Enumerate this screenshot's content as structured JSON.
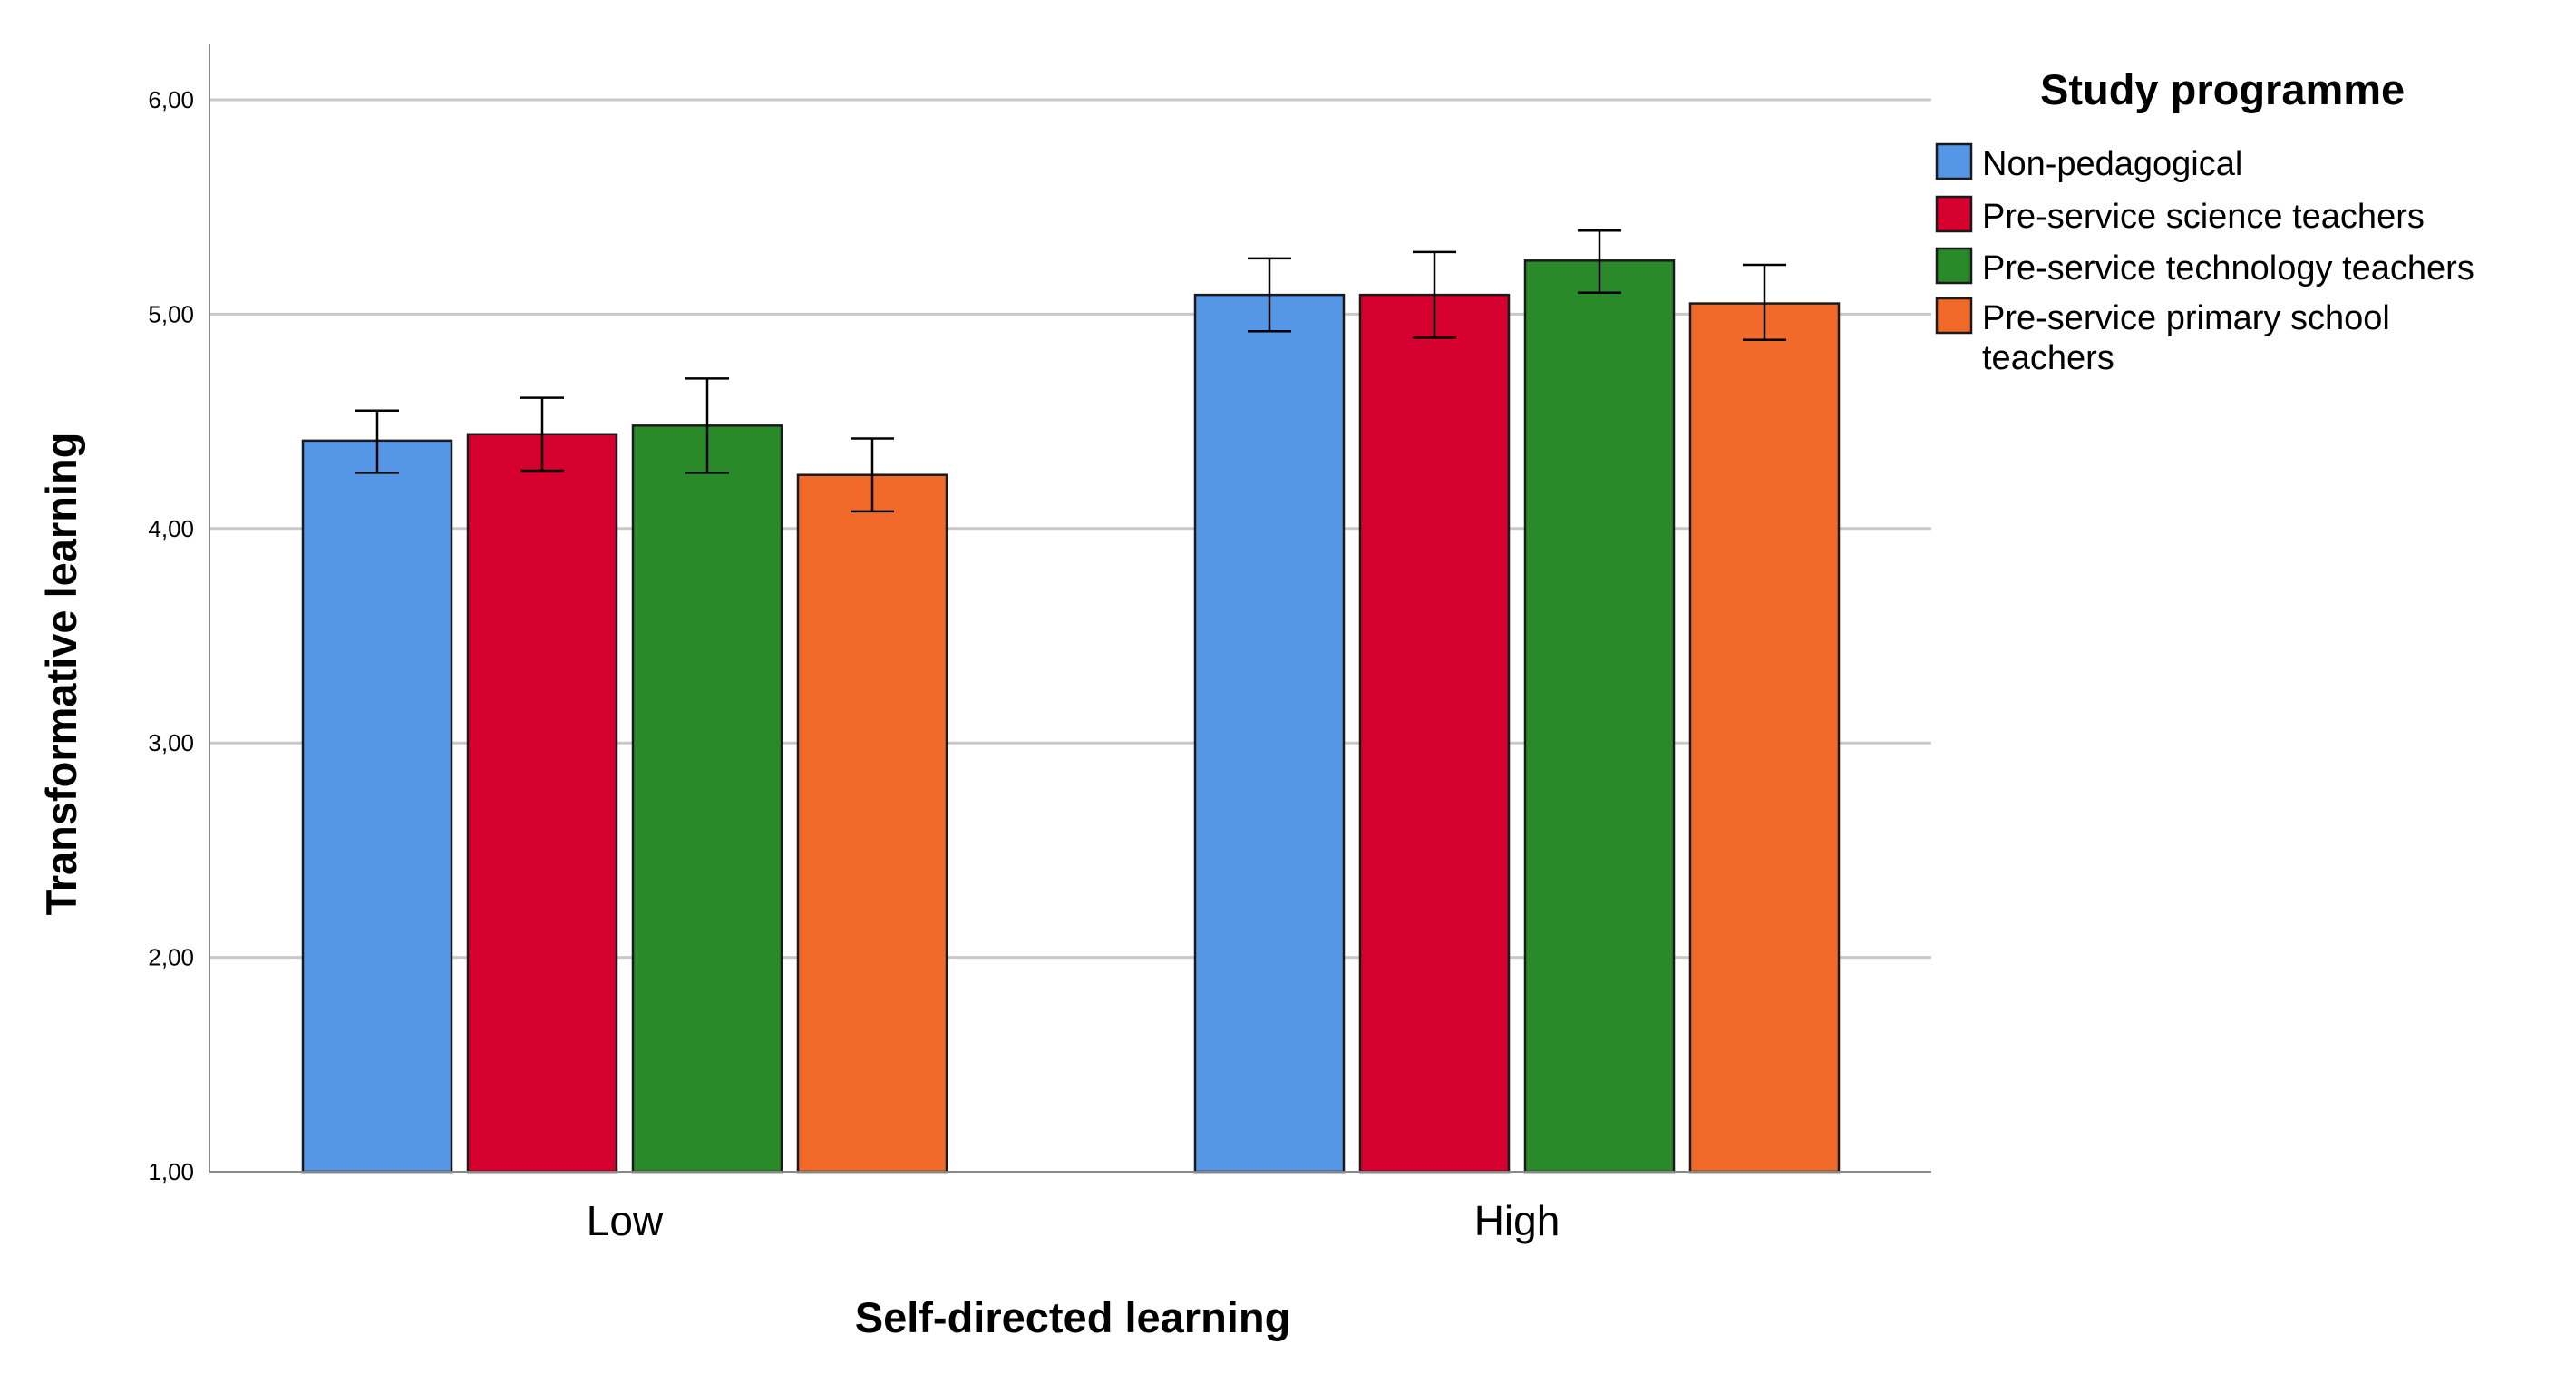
{
  "chart_data": {
    "type": "bar",
    "title": "",
    "xlabel": "Self-directed learning",
    "ylabel": "Transformative learning",
    "ylim": [
      1,
      6.4
    ],
    "yticks": [
      1,
      2,
      3,
      4,
      5,
      6
    ],
    "ytick_labels": [
      "1,00",
      "2,00",
      "3,00",
      "4,00",
      "5,00",
      "6,00"
    ],
    "grid": true,
    "categories": [
      "Low",
      "High"
    ],
    "legend_title": "Study programme",
    "legend_position": "top-right",
    "series": [
      {
        "name": "Non-pedagogical",
        "legend_lines": [
          "Non-pedagogical"
        ],
        "color": "#5596E6",
        "values": [
          4.41,
          5.09
        ],
        "error_low": [
          4.26,
          4.92
        ],
        "error_high": [
          4.55,
          5.26
        ]
      },
      {
        "name": "Pre-service science teachers",
        "legend_lines": [
          "Pre-service science teachers"
        ],
        "color": "#D6002E",
        "values": [
          4.44,
          5.09
        ],
        "error_low": [
          4.27,
          4.89
        ],
        "error_high": [
          4.61,
          5.29
        ]
      },
      {
        "name": "Pre-service technology teachers",
        "legend_lines": [
          "Pre-service technology teachers"
        ],
        "color": "#2A8A2A",
        "values": [
          4.48,
          5.25
        ],
        "error_low": [
          4.26,
          5.1
        ],
        "error_high": [
          4.7,
          5.39
        ]
      },
      {
        "name": "Pre-service primary school teachers",
        "legend_lines": [
          "Pre-service primary school",
          "teachers"
        ],
        "color": "#F26A2A",
        "values": [
          4.25,
          5.05
        ],
        "error_low": [
          4.08,
          4.88
        ],
        "error_high": [
          4.42,
          5.23
        ]
      }
    ]
  }
}
